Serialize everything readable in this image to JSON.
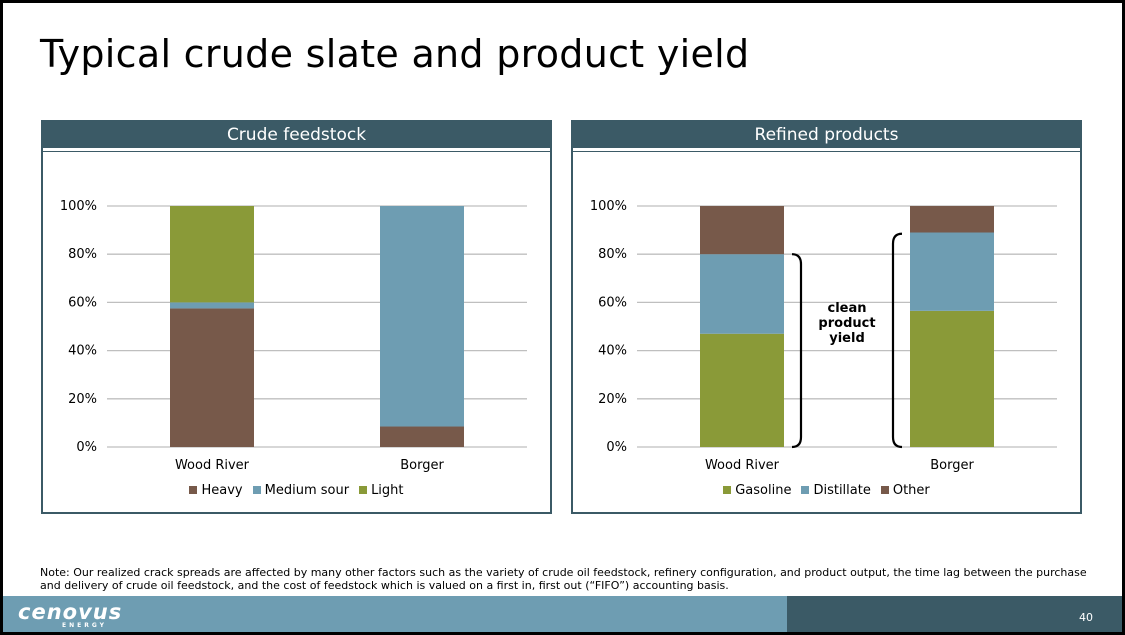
{
  "slide": {
    "title": "Typical crude slate and product yield",
    "note": "Note: Our realized crack spreads are affected by many other factors such as the variety of crude oil feedstock, refinery configuration, and product output, the time lag between the purchase and delivery of crude oil feedstock, and the cost of feedstock which is valued on a first in, first out (“FIFO”) accounting basis.",
    "page_number": "40",
    "logo_text": "cenovus",
    "logo_subtext": "ENERGY"
  },
  "chart_data": [
    {
      "type": "bar",
      "stacked": true,
      "title": "Crude feedstock",
      "categories": [
        "Wood River",
        "Borger"
      ],
      "y_ticks": [
        "0%",
        "20%",
        "40%",
        "60%",
        "80%",
        "100%"
      ],
      "ylim": [
        0,
        100
      ],
      "series": [
        {
          "name": "Heavy",
          "color": "#77594a",
          "values": [
            57.5,
            8.5
          ]
        },
        {
          "name": "Medium sour",
          "color": "#6e9db2",
          "values": [
            2.5,
            91.5
          ]
        },
        {
          "name": "Light",
          "color": "#8a9a38",
          "values": [
            40,
            0
          ]
        }
      ],
      "grid": true,
      "legend_position": "bottom"
    },
    {
      "type": "bar",
      "stacked": true,
      "title": "Refined products",
      "categories": [
        "Wood River",
        "Borger"
      ],
      "y_ticks": [
        "0%",
        "20%",
        "40%",
        "60%",
        "80%",
        "100%"
      ],
      "ylim": [
        0,
        100
      ],
      "series": [
        {
          "name": "Gasoline",
          "color": "#8a9a38",
          "values": [
            47,
            56.5
          ]
        },
        {
          "name": "Distillate",
          "color": "#6e9db2",
          "values": [
            33,
            32.5
          ]
        },
        {
          "name": "Other",
          "color": "#77594a",
          "values": [
            20,
            11
          ]
        }
      ],
      "grid": true,
      "legend_position": "bottom",
      "annotation": {
        "lines": [
          "clean",
          "product",
          "yield"
        ],
        "brackets": [
          [
            0,
            80
          ],
          [
            0,
            88.5
          ]
        ]
      }
    }
  ]
}
